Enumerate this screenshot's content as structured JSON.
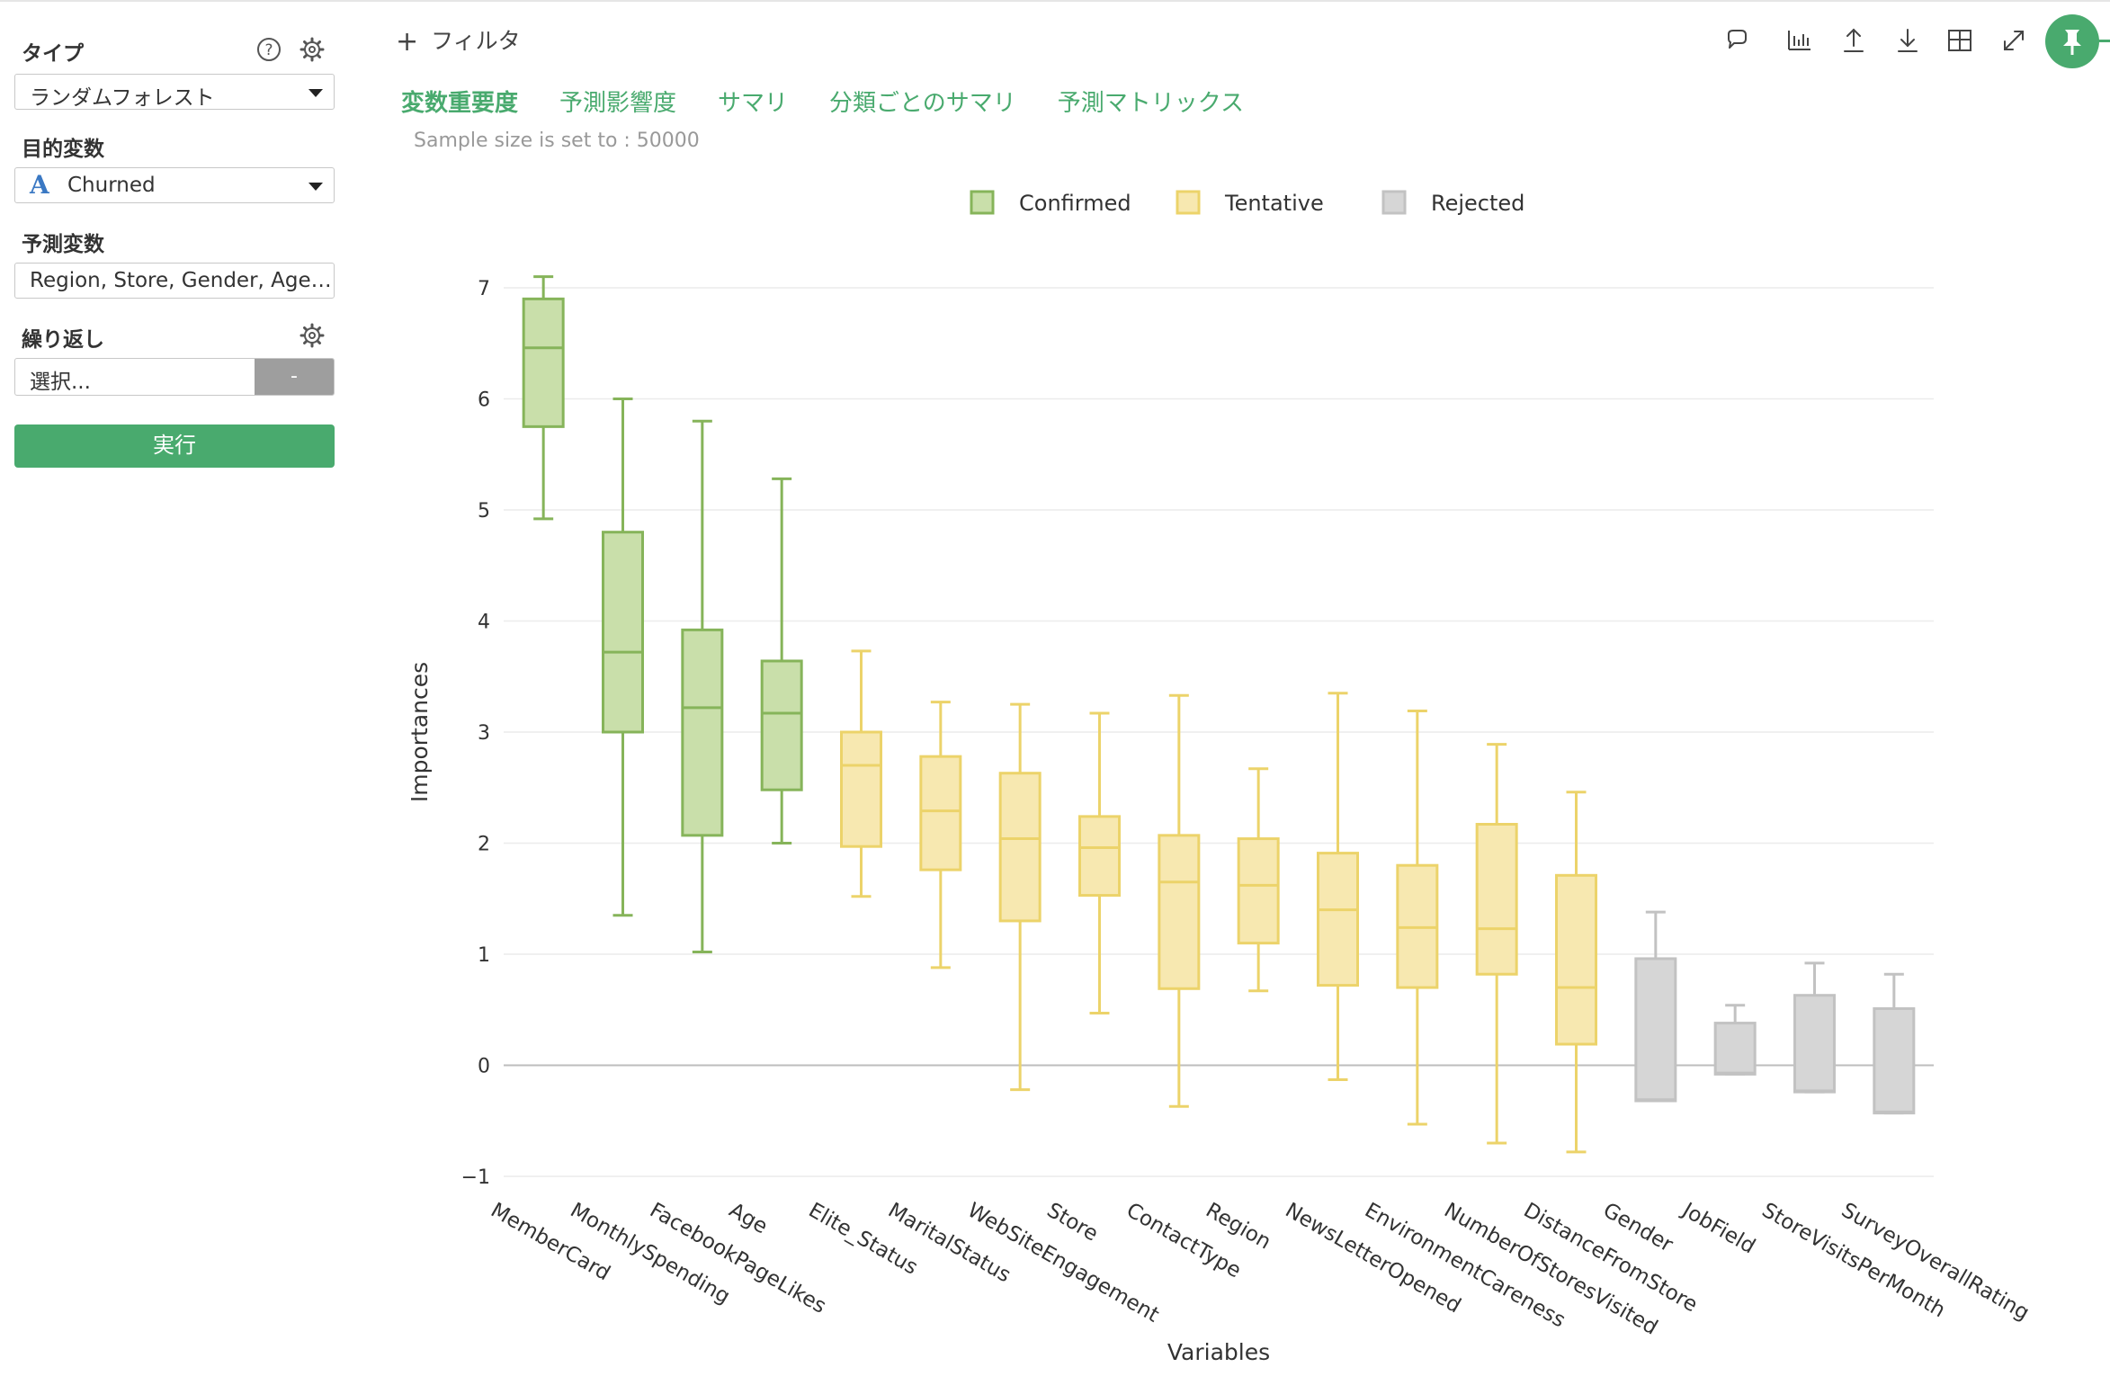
{
  "sidebar": {
    "type_label": "タイプ",
    "type_value": "ランダムフォレスト",
    "target_label": "目的変数",
    "target_value": "Churned",
    "predictors_label": "予測変数",
    "predictors_value": "Region, Store, Gender, Age…",
    "repeat_label": "繰り返し",
    "repeat_placeholder": "選択...",
    "repeat_button": "-",
    "run_button": "実行"
  },
  "topbar": {
    "filter_label": "フィルタ",
    "icons": [
      "comment-icon",
      "chart-icon",
      "upload-icon",
      "download-icon",
      "table-icon",
      "expand-icon",
      "pin-icon"
    ]
  },
  "tabs": [
    {
      "label": "変数重要度",
      "active": true
    },
    {
      "label": "予測影響度",
      "active": false
    },
    {
      "label": "サマリ",
      "active": false
    },
    {
      "label": "分類ごとのサマリ",
      "active": false
    },
    {
      "label": "予測マトリックス",
      "active": false
    }
  ],
  "sample_note": "Sample size is set to : 50000",
  "colors": {
    "accent": "#49aa6e",
    "confirmed_fill": "#c9dfaa",
    "confirmed_stroke": "#86b45a",
    "tentative_fill": "#f7e8b0",
    "tentative_stroke": "#ecd36a",
    "rejected_fill": "#d6d6d6",
    "rejected_stroke": "#c2c2c2"
  },
  "chart_data": {
    "type": "box",
    "xlabel": "Variables",
    "ylabel": "Importances",
    "ylim": [
      -1,
      7
    ],
    "yticks": [
      -1,
      0,
      1,
      2,
      3,
      4,
      5,
      6,
      7
    ],
    "grid": true,
    "legend_position": "top-center",
    "legend": [
      {
        "name": "Confirmed",
        "group": "confirmed"
      },
      {
        "name": "Tentative",
        "group": "tentative"
      },
      {
        "name": "Rejected",
        "group": "rejected"
      }
    ],
    "boxes": [
      {
        "name": "MemberCard",
        "group": "confirmed",
        "min": 4.92,
        "q1": 5.75,
        "median": 6.46,
        "q3": 6.9,
        "max": 7.1
      },
      {
        "name": "MonthlySpending",
        "group": "confirmed",
        "min": 1.35,
        "q1": 3.0,
        "median": 3.72,
        "q3": 4.8,
        "max": 6.0
      },
      {
        "name": "FacebookPageLikes",
        "group": "confirmed",
        "min": 1.02,
        "q1": 2.07,
        "median": 3.22,
        "q3": 3.92,
        "max": 5.8
      },
      {
        "name": "Age",
        "group": "confirmed",
        "min": 2.0,
        "q1": 2.48,
        "median": 3.17,
        "q3": 3.64,
        "max": 5.28
      },
      {
        "name": "Elite_Status",
        "group": "tentative",
        "min": 1.52,
        "q1": 1.97,
        "median": 2.7,
        "q3": 3.0,
        "max": 3.73
      },
      {
        "name": "MaritalStatus",
        "group": "tentative",
        "min": 0.88,
        "q1": 1.76,
        "median": 2.29,
        "q3": 2.78,
        "max": 3.27
      },
      {
        "name": "WebSiteEngagement",
        "group": "tentative",
        "min": -0.22,
        "q1": 1.3,
        "median": 2.04,
        "q3": 2.63,
        "max": 3.25
      },
      {
        "name": "Store",
        "group": "tentative",
        "min": 0.47,
        "q1": 1.53,
        "median": 1.96,
        "q3": 2.24,
        "max": 3.17
      },
      {
        "name": "ContactType",
        "group": "tentative",
        "min": -0.37,
        "q1": 0.69,
        "median": 1.65,
        "q3": 2.07,
        "max": 3.33
      },
      {
        "name": "Region",
        "group": "tentative",
        "min": 0.67,
        "q1": 1.1,
        "median": 1.62,
        "q3": 2.04,
        "max": 2.67
      },
      {
        "name": "NewsLetterOpened",
        "group": "tentative",
        "min": -0.13,
        "q1": 0.72,
        "median": 1.4,
        "q3": 1.91,
        "max": 3.35
      },
      {
        "name": "EnvironmentCareness",
        "group": "tentative",
        "min": -0.53,
        "q1": 0.7,
        "median": 1.24,
        "q3": 1.8,
        "max": 3.19
      },
      {
        "name": "NumberOfStoresVisited",
        "group": "tentative",
        "min": -0.7,
        "q1": 0.82,
        "median": 1.23,
        "q3": 2.17,
        "max": 2.89
      },
      {
        "name": "DistanceFromStore",
        "group": "tentative",
        "min": -0.78,
        "q1": 0.19,
        "median": 0.7,
        "q3": 1.71,
        "max": 2.46
      },
      {
        "name": "Gender",
        "group": "rejected",
        "min": -0.32,
        "q1": -0.32,
        "median": -0.31,
        "q3": 0.96,
        "max": 1.38
      },
      {
        "name": "JobField",
        "group": "rejected",
        "min": -0.08,
        "q1": -0.08,
        "median": -0.07,
        "q3": 0.38,
        "max": 0.54
      },
      {
        "name": "StoreVisitsPerMonth",
        "group": "rejected",
        "min": -0.24,
        "q1": -0.24,
        "median": -0.23,
        "q3": 0.63,
        "max": 0.92
      },
      {
        "name": "SurveyOverallRating",
        "group": "rejected",
        "min": -0.43,
        "q1": -0.43,
        "median": -0.42,
        "q3": 0.51,
        "max": 0.82
      }
    ]
  }
}
